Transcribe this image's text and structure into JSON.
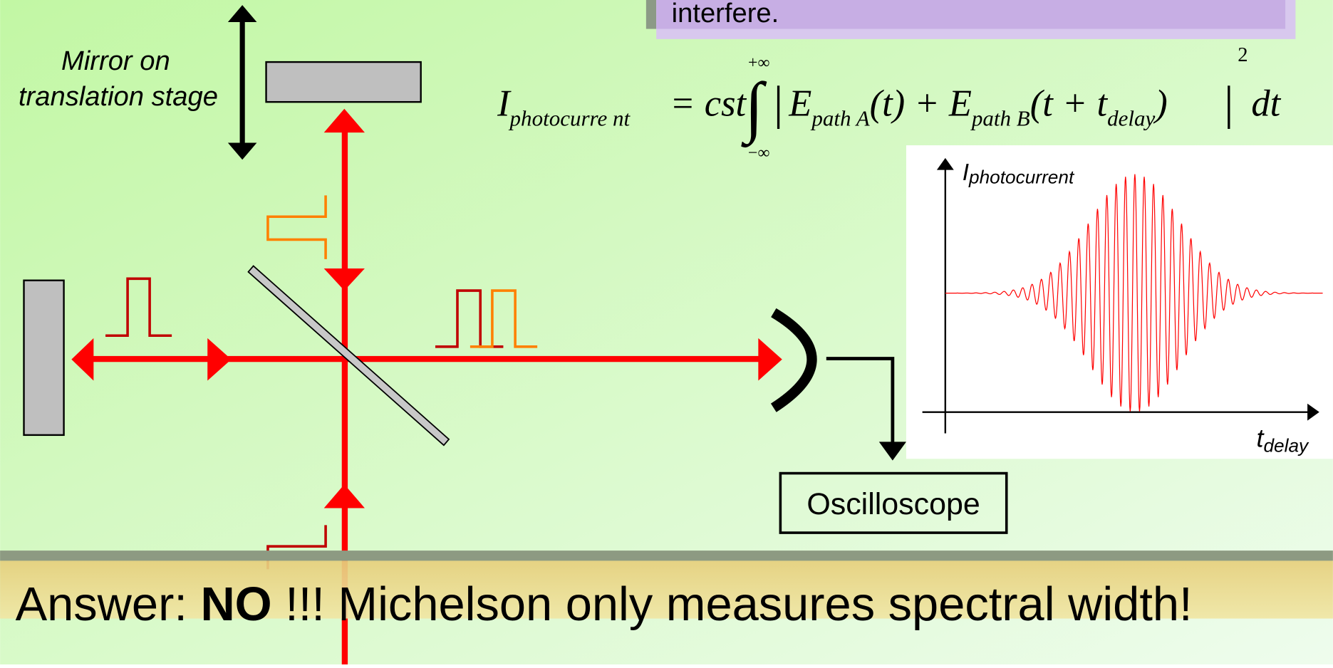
{
  "header": {
    "text": "interfere."
  },
  "labels": {
    "mirror_stage": [
      "Mirror on",
      "translation stage"
    ],
    "oscilloscope": "Oscilloscope"
  },
  "equation": {
    "lhs": "I",
    "lhs_sub": "photocurre nt",
    "rhs": "= cst",
    "integral": "∫",
    "upper": "+∞",
    "lower": "−∞",
    "bar_open": "|",
    "e1": "E",
    "e1_sub": "path A",
    "mid": "(t) + E",
    "e2_sub": "path B",
    "arg": "(t + t",
    "arg_sub": "delay",
    "close": ")",
    "bar_close": "|",
    "power": "2",
    "dt": "dt"
  },
  "plot": {
    "y_label": "I",
    "y_label_sub": "photocurrent",
    "x_label": "t",
    "x_label_sub": "delay"
  },
  "answer": {
    "prefix": "Answer: ",
    "emphasis": "NO",
    "suffix": " !!! Michelson only measures spectral width!"
  }
}
